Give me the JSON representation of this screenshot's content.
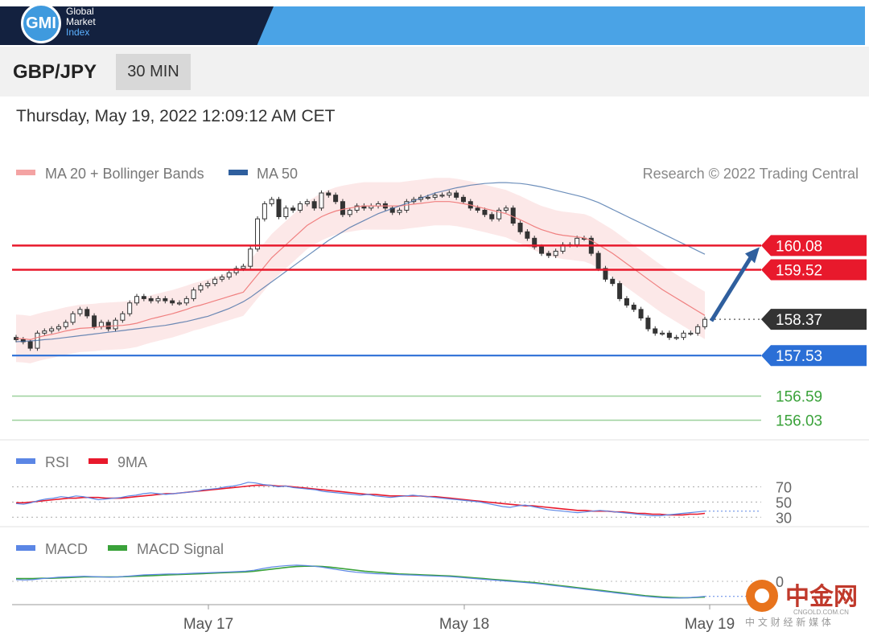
{
  "header": {
    "logo_mark": "GMI",
    "logo_lines": [
      "Global",
      "Market",
      "Index"
    ]
  },
  "symbol_bar": {
    "symbol": "GBP/JPY",
    "timeframe": "30 MIN"
  },
  "datetime": "Thursday, May 19, 2022 12:09:12 AM CET",
  "colors": {
    "bollinger": "#f08080",
    "ma50": "#2f5f9e",
    "resistance": "#e8192c",
    "current": "#333333",
    "support": "#2b6fd6",
    "target": "#3aa23a",
    "rsi": "#5b86e5",
    "rsi_ma": "#e8192c",
    "macd": "#5b86e5",
    "macd_signal": "#3aa23a",
    "arrow": "#2f5f9e"
  },
  "watermark": {
    "brand": "中金网",
    "domain": "CNGOLD.COM.CN",
    "tagline": "中 文 财 经 新 媒 体"
  },
  "chart_data": [
    {
      "type": "line",
      "panel": "price",
      "legend": [
        "MA 20 + Bollinger Bands",
        "MA 50"
      ],
      "legend_position": "top-left",
      "credit": "Research © 2022 Trading Central",
      "x_ticks": [
        "May 17",
        "May 18",
        "May 19"
      ],
      "ylim": [
        155.8,
        161.3
      ],
      "levels": [
        {
          "label": "160.08",
          "value": 160.08,
          "kind": "resistance"
        },
        {
          "label": "159.52",
          "value": 159.52,
          "kind": "resistance"
        },
        {
          "label": "158.37",
          "value": 158.37,
          "kind": "current"
        },
        {
          "label": "157.53",
          "value": 157.53,
          "kind": "support"
        },
        {
          "label": "156.59",
          "value": 156.59,
          "kind": "target"
        },
        {
          "label": "156.03",
          "value": 156.03,
          "kind": "target"
        }
      ],
      "close": [
        157.9,
        157.85,
        157.7,
        158.05,
        158.1,
        158.15,
        158.2,
        158.3,
        158.5,
        158.6,
        158.45,
        158.2,
        158.3,
        158.15,
        158.35,
        158.5,
        158.75,
        158.9,
        158.85,
        158.8,
        158.85,
        158.8,
        158.75,
        158.75,
        158.85,
        159.05,
        159.15,
        159.2,
        159.3,
        159.35,
        159.45,
        159.55,
        159.6,
        160.0,
        160.7,
        161.05,
        161.15,
        160.75,
        160.95,
        160.9,
        161.05,
        161.1,
        160.95,
        161.3,
        161.25,
        161.1,
        160.8,
        160.9,
        161.0,
        160.95,
        161.0,
        161.05,
        160.95,
        160.85,
        160.9,
        161.1,
        161.15,
        161.2,
        161.2,
        161.25,
        161.25,
        161.3,
        161.2,
        161.1,
        160.95,
        160.9,
        160.8,
        160.7,
        160.9,
        160.95,
        160.6,
        160.4,
        160.25,
        160.05,
        159.9,
        159.85,
        159.95,
        160.1,
        160.1,
        160.25,
        160.25,
        159.9,
        159.55,
        159.3,
        159.2,
        158.85,
        158.7,
        158.6,
        158.4,
        158.15,
        158.05,
        158.05,
        157.95,
        157.95,
        158.05,
        158.05,
        158.2,
        158.37
      ],
      "ma20": [
        157.93,
        157.92,
        157.9,
        157.95,
        157.99,
        158.02,
        158.06,
        158.1,
        158.13,
        158.16,
        158.17,
        158.18,
        158.2,
        158.21,
        158.22,
        158.23,
        158.25,
        158.28,
        158.33,
        158.38,
        158.42,
        158.46,
        158.5,
        158.55,
        158.6,
        158.66,
        158.7,
        158.75,
        158.8,
        158.85,
        158.9,
        158.95,
        159.0,
        159.2,
        159.4,
        159.6,
        159.8,
        159.95,
        160.1,
        160.25,
        160.4,
        160.55,
        160.65,
        160.75,
        160.82,
        160.88,
        160.92,
        160.95,
        160.98,
        161.0,
        161.0,
        161.0,
        161.0,
        161.0,
        161.0,
        161.02,
        161.04,
        161.06,
        161.08,
        161.1,
        161.1,
        161.1,
        161.08,
        161.05,
        161.02,
        160.98,
        160.94,
        160.9,
        160.86,
        160.82,
        160.75,
        160.68,
        160.6,
        160.52,
        160.45,
        160.4,
        160.35,
        160.32,
        160.3,
        160.28,
        160.26,
        160.2,
        160.1,
        160.0,
        159.9,
        159.78,
        159.66,
        159.54,
        159.42,
        159.3,
        159.18,
        159.06,
        158.96,
        158.86,
        158.76,
        158.66,
        158.56,
        158.46
      ],
      "ma50": [
        157.85,
        157.86,
        157.87,
        157.88,
        157.9,
        157.91,
        157.93,
        157.95,
        157.97,
        157.99,
        158.01,
        158.03,
        158.05,
        158.07,
        158.09,
        158.11,
        158.13,
        158.15,
        158.17,
        158.19,
        158.21,
        158.23,
        158.26,
        158.29,
        158.32,
        158.36,
        158.4,
        158.44,
        158.5,
        158.56,
        158.62,
        158.7,
        158.78,
        158.88,
        159.0,
        159.12,
        159.24,
        159.36,
        159.48,
        159.6,
        159.72,
        159.84,
        159.96,
        160.08,
        160.2,
        160.3,
        160.4,
        160.5,
        160.58,
        160.66,
        160.74,
        160.82,
        160.88,
        160.94,
        161.0,
        161.06,
        161.12,
        161.18,
        161.24,
        161.3,
        161.34,
        161.38,
        161.42,
        161.45,
        161.48,
        161.5,
        161.52,
        161.53,
        161.54,
        161.54,
        161.53,
        161.52,
        161.5,
        161.47,
        161.44,
        161.4,
        161.36,
        161.32,
        161.28,
        161.24,
        161.2,
        161.14,
        161.08,
        161.0,
        160.92,
        160.84,
        160.76,
        160.68,
        160.6,
        160.52,
        160.44,
        160.36,
        160.28,
        160.2,
        160.12,
        160.04,
        159.96,
        159.88
      ]
    },
    {
      "type": "line",
      "panel": "rsi",
      "legend": [
        "RSI",
        "9MA"
      ],
      "legend_position": "top-left",
      "ylim": [
        25,
        80
      ],
      "y_ticks": [
        70,
        50,
        30
      ],
      "rsi": [
        48,
        47,
        49,
        52,
        54,
        55,
        57,
        56,
        58,
        57,
        55,
        53,
        54,
        55,
        56,
        58,
        59,
        61,
        62,
        61,
        60,
        61,
        62,
        63,
        64,
        66,
        67,
        68,
        70,
        71,
        73,
        76,
        75,
        73,
        72,
        70,
        71,
        69,
        68,
        67,
        66,
        64,
        63,
        62,
        61,
        60,
        59,
        60,
        58,
        57,
        56,
        57,
        58,
        59,
        58,
        57,
        56,
        55,
        54,
        53,
        52,
        51,
        50,
        48,
        46,
        44,
        43,
        45,
        46,
        44,
        42,
        40,
        39,
        38,
        37,
        36,
        37,
        38,
        39,
        38,
        37,
        36,
        35,
        34,
        33,
        32,
        32,
        33,
        34,
        35,
        36,
        37,
        38
      ],
      "ma9": [
        49,
        49,
        50,
        51,
        52,
        53,
        54,
        55,
        55,
        56,
        56,
        56,
        55,
        55,
        55,
        56,
        57,
        58,
        59,
        60,
        61,
        61,
        62,
        63,
        64,
        65,
        66,
        67,
        68,
        69,
        70,
        71,
        72,
        72,
        72,
        71,
        71,
        70,
        69,
        68,
        67,
        66,
        65,
        64,
        63,
        62,
        61,
        60,
        60,
        59,
        58,
        58,
        58,
        58,
        58,
        57,
        57,
        56,
        55,
        54,
        53,
        52,
        51,
        50,
        49,
        48,
        47,
        46,
        45,
        45,
        44,
        43,
        42,
        41,
        40,
        39,
        39,
        38,
        38,
        38,
        37,
        37,
        36,
        35,
        35,
        34,
        34,
        33,
        33,
        33,
        34,
        34,
        35
      ]
    },
    {
      "type": "line",
      "panel": "macd",
      "legend": [
        "MACD",
        "MACD Signal"
      ],
      "legend_position": "top-left",
      "ylim": [
        -0.6,
        0.55
      ],
      "y_ticks": [
        0
      ],
      "macd": [
        0.05,
        0.04,
        0.05,
        0.08,
        0.1,
        0.12,
        0.13,
        0.14,
        0.15,
        0.14,
        0.13,
        0.12,
        0.13,
        0.15,
        0.17,
        0.19,
        0.2,
        0.21,
        0.22,
        0.22,
        0.23,
        0.24,
        0.25,
        0.26,
        0.27,
        0.28,
        0.29,
        0.3,
        0.33,
        0.38,
        0.42,
        0.45,
        0.47,
        0.48,
        0.47,
        0.45,
        0.42,
        0.38,
        0.34,
        0.3,
        0.27,
        0.25,
        0.23,
        0.22,
        0.21,
        0.2,
        0.19,
        0.18,
        0.17,
        0.16,
        0.15,
        0.14,
        0.12,
        0.1,
        0.08,
        0.06,
        0.04,
        0.02,
        0.0,
        -0.02,
        -0.04,
        -0.06,
        -0.09,
        -0.12,
        -0.15,
        -0.18,
        -0.21,
        -0.24,
        -0.27,
        -0.3,
        -0.33,
        -0.36,
        -0.39,
        -0.42,
        -0.45,
        -0.47,
        -0.49,
        -0.5,
        -0.5,
        -0.49,
        -0.47,
        -0.45
      ],
      "signal": [
        0.08,
        0.08,
        0.08,
        0.09,
        0.09,
        0.1,
        0.11,
        0.12,
        0.13,
        0.13,
        0.13,
        0.13,
        0.13,
        0.14,
        0.15,
        0.16,
        0.17,
        0.18,
        0.19,
        0.2,
        0.21,
        0.22,
        0.23,
        0.24,
        0.25,
        0.26,
        0.27,
        0.28,
        0.3,
        0.33,
        0.36,
        0.39,
        0.42,
        0.44,
        0.45,
        0.45,
        0.44,
        0.42,
        0.39,
        0.36,
        0.33,
        0.3,
        0.28,
        0.26,
        0.24,
        0.22,
        0.21,
        0.2,
        0.19,
        0.18,
        0.17,
        0.16,
        0.14,
        0.12,
        0.1,
        0.08,
        0.06,
        0.04,
        0.02,
        0.0,
        -0.02,
        -0.04,
        -0.07,
        -0.1,
        -0.13,
        -0.16,
        -0.19,
        -0.22,
        -0.25,
        -0.28,
        -0.31,
        -0.34,
        -0.37,
        -0.4,
        -0.43,
        -0.45,
        -0.47,
        -0.48,
        -0.49,
        -0.49,
        -0.48,
        -0.47
      ]
    }
  ]
}
